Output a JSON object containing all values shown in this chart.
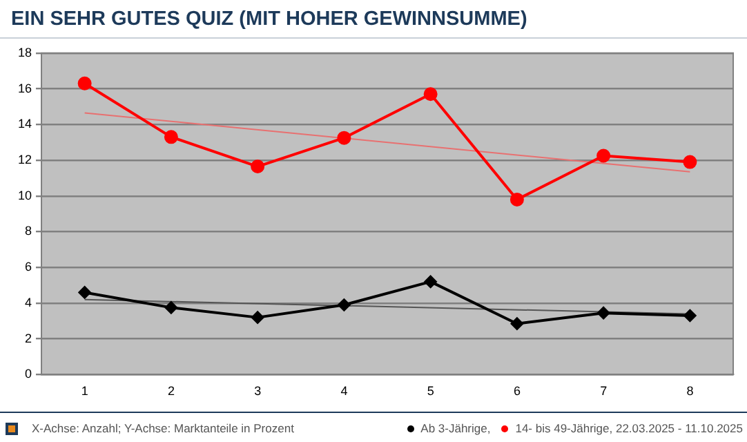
{
  "chart_data": {
    "type": "line",
    "title": "EIN SEHR GUTES QUIZ (MIT HOHER GEWINNSUMME)",
    "xlim": [
      0.5,
      8.5
    ],
    "xticks": [
      1,
      2,
      3,
      4,
      5,
      6,
      7,
      8
    ],
    "ylim": [
      0,
      18
    ],
    "yticks": [
      0,
      2,
      4,
      6,
      8,
      10,
      12,
      14,
      16,
      18
    ],
    "grid": "y",
    "legend": "bottom",
    "annotations": [
      "X-Achse: Anzahl; Y-Achse: Marktanteile in Prozent"
    ],
    "series": [
      {
        "name": "Ab 3-Jährige,",
        "color": "#000000",
        "marker": "diamond",
        "x": [
          1,
          2,
          3,
          4,
          5,
          6,
          7,
          8
        ],
        "values": [
          4.6,
          3.75,
          3.2,
          3.9,
          5.2,
          2.85,
          3.45,
          3.3
        ]
      },
      {
        "name": "14- bis 49-Jährige, 22.03.2025 - 11.10.2025",
        "color": "#ff0000",
        "marker": "circle",
        "x": [
          1,
          2,
          3,
          4,
          5,
          6,
          7,
          8
        ],
        "values": [
          16.3,
          13.3,
          11.65,
          13.25,
          15.7,
          9.8,
          12.25,
          11.9
        ]
      },
      {
        "type": "line",
        "color": "#555555",
        "marker": "none",
        "x": [
          1,
          8
        ],
        "values": [
          4.2,
          3.4
        ]
      },
      {
        "type": "line",
        "color": "#e87070",
        "marker": "none",
        "x": [
          1,
          8
        ],
        "values": [
          14.65,
          11.35
        ]
      }
    ]
  }
}
